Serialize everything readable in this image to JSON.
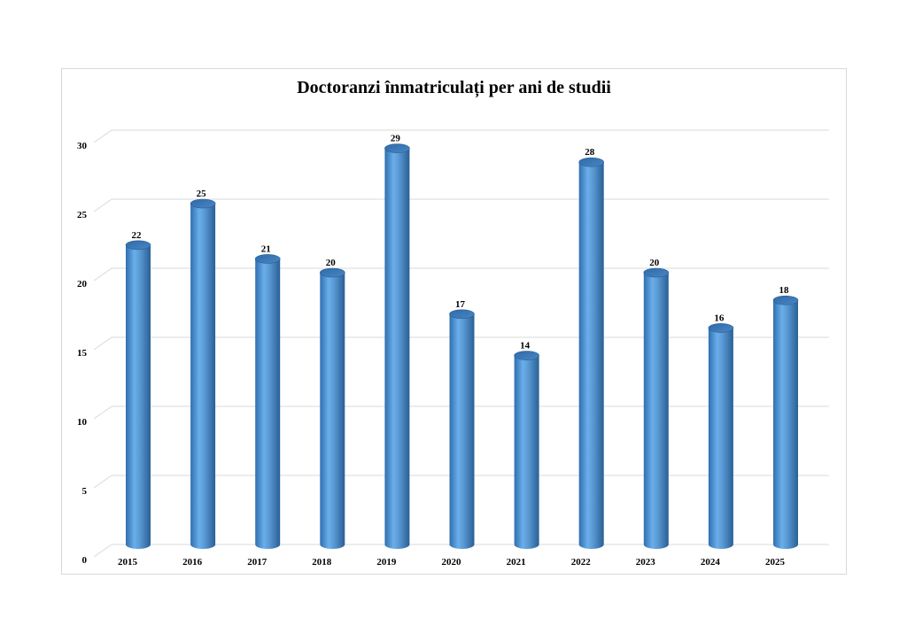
{
  "chart_data": {
    "type": "bar",
    "title": "Doctoranzi înmatriculați per ani de studii",
    "xlabel": "",
    "ylabel": "",
    "categories": [
      "2015",
      "2016",
      "2017",
      "2018",
      "2019",
      "2020",
      "2021",
      "2022",
      "2023",
      "2024",
      "2025"
    ],
    "values": [
      22,
      25,
      21,
      20,
      29,
      17,
      14,
      28,
      20,
      16,
      18
    ],
    "ylim": [
      0,
      30
    ],
    "yticks": [
      0,
      5,
      10,
      15,
      20,
      25,
      30
    ],
    "grid": true,
    "legend": "none",
    "bar_shape": "cylinder",
    "bar_color": "#5b9bd5",
    "data_labels": true
  }
}
